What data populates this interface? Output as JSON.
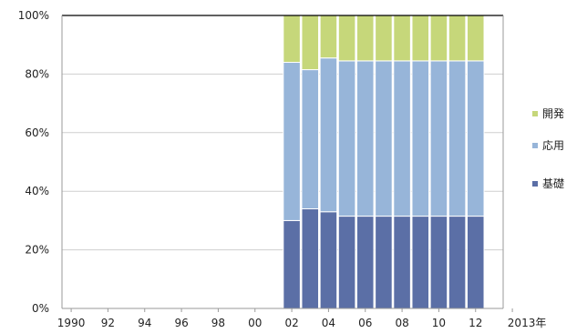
{
  "chart_data": {
    "type": "bar",
    "stacked": true,
    "normalized": true,
    "categories": [
      "1990",
      "1991",
      "1992",
      "1993",
      "1994",
      "1995",
      "1996",
      "1997",
      "1998",
      "1999",
      "2000",
      "2001",
      "2002",
      "2003",
      "2004",
      "2005",
      "2006",
      "2007",
      "2008",
      "2009",
      "2010",
      "2011",
      "2012",
      "2013"
    ],
    "x_tick_labels": [
      "1990",
      "92",
      "94",
      "96",
      "98",
      "00",
      "02",
      "04",
      "06",
      "08",
      "10",
      "12",
      "2013年"
    ],
    "y_tick_labels": [
      "0%",
      "20%",
      "40%",
      "60%",
      "80%",
      "100%"
    ],
    "ylim": [
      0,
      100
    ],
    "series": [
      {
        "name": "基礎",
        "color": "#5b6fa6",
        "values": [
          null,
          null,
          null,
          null,
          null,
          null,
          null,
          null,
          null,
          null,
          null,
          null,
          30,
          34,
          33,
          31.5,
          31.5,
          31.5,
          31.5,
          31.5,
          31.5,
          31.5,
          31.5,
          null
        ]
      },
      {
        "name": "応用",
        "color": "#97b5d9",
        "values": [
          null,
          null,
          null,
          null,
          null,
          null,
          null,
          null,
          null,
          null,
          null,
          null,
          54,
          47.5,
          52.5,
          53,
          53,
          53,
          53,
          53,
          53,
          53,
          53,
          null
        ]
      },
      {
        "name": "開発",
        "color": "#c6d77a",
        "values": [
          null,
          null,
          null,
          null,
          null,
          null,
          null,
          null,
          null,
          null,
          null,
          null,
          16,
          18.5,
          14.5,
          15.5,
          15.5,
          15.5,
          15.5,
          15.5,
          15.5,
          15.5,
          15.5,
          null
        ]
      }
    ],
    "grid": true,
    "legend_position": "right"
  }
}
